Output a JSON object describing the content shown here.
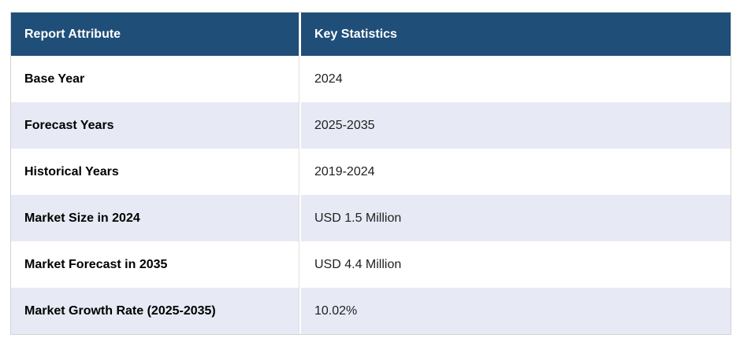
{
  "table": {
    "columns": {
      "attribute": "Report Attribute",
      "statistics": "Key Statistics"
    },
    "rows": [
      {
        "attribute": "Base Year",
        "value": "2024"
      },
      {
        "attribute": "Forecast Years",
        "value": "2025-2035"
      },
      {
        "attribute": "Historical Years",
        "value": "2019-2024"
      },
      {
        "attribute": "Market Size in 2024",
        "value": "USD 1.5 Million"
      },
      {
        "attribute": "Market Forecast in 2035",
        "value": "USD 4.4 Million"
      },
      {
        "attribute": "Market Growth Rate (2025-2035)",
        "value": "10.02%"
      }
    ],
    "colors": {
      "header_bg": "#1F4E79",
      "header_text": "#FFFFFF",
      "row_bg": "#FFFFFF",
      "row_alt_bg": "#E7EAF4",
      "label_text": "#000000",
      "value_text": "#1F1F1F",
      "outer_border": "#D4D4D4"
    }
  }
}
